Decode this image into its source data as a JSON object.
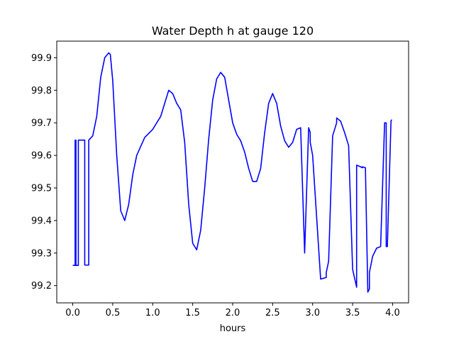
{
  "chart_data": {
    "type": "line",
    "title": "Water Depth h at gauge 120",
    "xlabel": "hours",
    "ylabel": "",
    "xlim": [
      -0.2,
      4.2
    ],
    "ylim": [
      99.147,
      99.951
    ],
    "xticks": [
      0.0,
      0.5,
      1.0,
      1.5,
      2.0,
      2.5,
      3.0,
      3.5,
      4.0
    ],
    "xtick_labels": [
      "0.0",
      "0.5",
      "1.0",
      "1.5",
      "2.0",
      "2.5",
      "3.0",
      "3.5",
      "4.0"
    ],
    "yticks": [
      99.2,
      99.3,
      99.4,
      99.5,
      99.6,
      99.7,
      99.8,
      99.9
    ],
    "ytick_labels": [
      "99.2",
      "99.3",
      "99.4",
      "99.5",
      "99.6",
      "99.7",
      "99.8",
      "99.9"
    ],
    "grid": false,
    "series": [
      {
        "color": "#0000ff",
        "x": [
          0.0,
          0.03,
          0.03,
          0.04,
          0.04,
          0.07,
          0.07,
          0.09,
          0.09,
          0.15,
          0.15,
          0.2,
          0.2,
          0.25,
          0.3,
          0.35,
          0.4,
          0.45,
          0.47,
          0.5,
          0.55,
          0.6,
          0.65,
          0.7,
          0.75,
          0.8,
          0.9,
          1.0,
          1.1,
          1.15,
          1.2,
          1.25,
          1.3,
          1.35,
          1.4,
          1.45,
          1.5,
          1.55,
          1.6,
          1.65,
          1.7,
          1.75,
          1.8,
          1.85,
          1.9,
          1.95,
          2.0,
          2.05,
          2.1,
          2.15,
          2.2,
          2.25,
          2.3,
          2.35,
          2.4,
          2.45,
          2.5,
          2.55,
          2.6,
          2.65,
          2.7,
          2.75,
          2.8,
          2.85,
          2.9,
          2.95,
          2.95,
          2.97,
          2.97,
          3.0,
          3.1,
          3.17,
          3.17,
          3.2,
          3.25,
          3.3,
          3.3,
          3.35,
          3.4,
          3.45,
          3.5,
          3.55,
          3.55,
          3.6,
          3.62,
          3.62,
          3.66,
          3.69,
          3.71,
          3.71,
          3.75,
          3.8,
          3.85,
          3.9,
          3.92,
          3.92,
          3.935,
          3.935,
          3.98,
          3.98,
          3.99
        ],
        "y": [
          99.262,
          99.262,
          99.647,
          99.647,
          99.262,
          99.262,
          99.647,
          99.647,
          99.647,
          99.647,
          99.263,
          99.263,
          99.647,
          99.66,
          99.72,
          99.84,
          99.9,
          99.915,
          99.91,
          99.83,
          99.6,
          99.43,
          99.4,
          99.45,
          99.54,
          99.6,
          99.655,
          99.68,
          99.72,
          99.76,
          99.8,
          99.79,
          99.76,
          99.74,
          99.64,
          99.45,
          99.33,
          99.31,
          99.37,
          99.5,
          99.65,
          99.77,
          99.835,
          99.855,
          99.84,
          99.77,
          99.7,
          99.665,
          99.645,
          99.61,
          99.56,
          99.52,
          99.52,
          99.56,
          99.67,
          99.76,
          99.79,
          99.76,
          99.69,
          99.645,
          99.625,
          99.64,
          99.68,
          99.685,
          99.3,
          99.685,
          99.685,
          99.67,
          99.64,
          99.6,
          99.22,
          99.225,
          99.24,
          99.275,
          99.66,
          99.7,
          99.715,
          99.705,
          99.67,
          99.63,
          99.25,
          99.195,
          99.57,
          99.565,
          99.562,
          99.565,
          99.562,
          99.18,
          99.19,
          99.24,
          99.29,
          99.315,
          99.32,
          99.7,
          99.7,
          99.32,
          99.32,
          99.325,
          99.706,
          99.706,
          99.71
        ]
      }
    ]
  }
}
